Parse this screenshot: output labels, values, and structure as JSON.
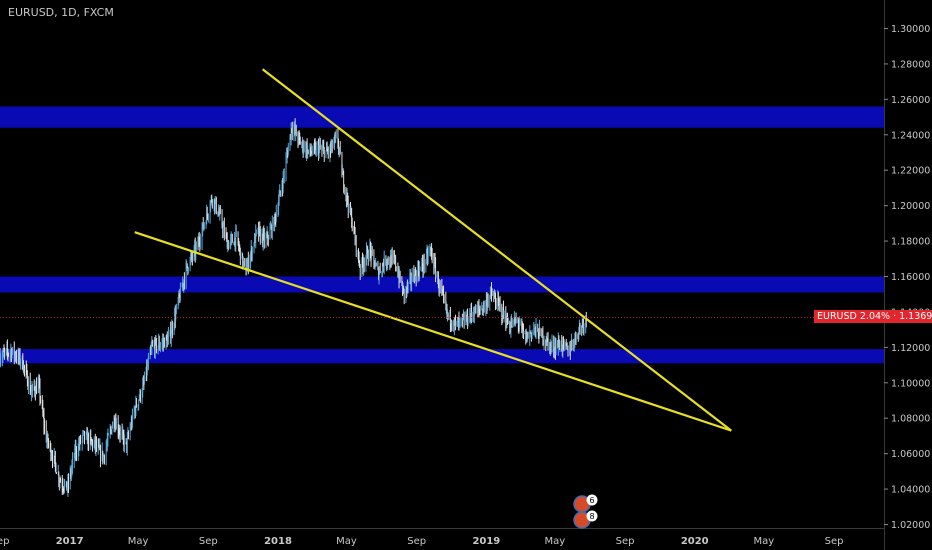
{
  "header": {
    "symbol_line": "EURUSD, 1D, FXCM"
  },
  "price_tag": {
    "text": "EURUSD 2.04% · 1.13691"
  },
  "badges": {
    "top": "6",
    "bottom": "8"
  },
  "colors": {
    "background": "#000000",
    "zone": "#0a0ab4",
    "trendline": "#e8e020",
    "up": "#5aa9d6",
    "down": "#e0e0e0",
    "last_price_line": "#e3262d"
  },
  "chart_data": {
    "type": "candlestick",
    "title": "EURUSD, 1D, FXCM",
    "xlabel": "",
    "ylabel": "",
    "ylim": [
      1.014,
      1.312
    ],
    "xlim": [
      "2016-09-01",
      "2020-10-20"
    ],
    "y_ticks": [
      "1.02000",
      "1.04000",
      "1.06000",
      "1.08000",
      "1.10000",
      "1.12000",
      "1.14000",
      "1.16000",
      "1.18000",
      "1.20000",
      "1.22000",
      "1.24000",
      "1.26000",
      "1.28000",
      "1.30000"
    ],
    "x_ticks": [
      {
        "label": "Sep",
        "date": "2016-09-01"
      },
      {
        "label": "2017",
        "date": "2017-01-01"
      },
      {
        "label": "May",
        "date": "2017-05-01"
      },
      {
        "label": "Sep",
        "date": "2017-09-01"
      },
      {
        "label": "2018",
        "date": "2018-01-01"
      },
      {
        "label": "May",
        "date": "2018-05-01"
      },
      {
        "label": "Sep",
        "date": "2018-09-01"
      },
      {
        "label": "2019",
        "date": "2019-01-01"
      },
      {
        "label": "May",
        "date": "2019-05-01"
      },
      {
        "label": "Sep",
        "date": "2019-09-01"
      },
      {
        "label": "2020",
        "date": "2020-01-01"
      },
      {
        "label": "May",
        "date": "2020-05-01"
      },
      {
        "label": "Sep",
        "date": "2020-09-01"
      }
    ],
    "last_price": 1.13691,
    "change_percent": "2.04%",
    "price_path": [
      [
        "2016-09-01",
        1.115
      ],
      [
        "2016-09-20",
        1.118
      ],
      [
        "2016-10-10",
        1.112
      ],
      [
        "2016-10-25",
        1.095
      ],
      [
        "2016-11-08",
        1.098
      ],
      [
        "2016-11-20",
        1.07
      ],
      [
        "2016-12-01",
        1.06
      ],
      [
        "2016-12-15",
        1.045
      ],
      [
        "2016-12-28",
        1.04
      ],
      [
        "2017-01-10",
        1.06
      ],
      [
        "2017-01-25",
        1.07
      ],
      [
        "2017-02-10",
        1.066
      ],
      [
        "2017-03-01",
        1.058
      ],
      [
        "2017-03-20",
        1.08
      ],
      [
        "2017-04-10",
        1.064
      ],
      [
        "2017-04-25",
        1.085
      ],
      [
        "2017-05-10",
        1.098
      ],
      [
        "2017-05-25",
        1.12
      ],
      [
        "2017-06-10",
        1.122
      ],
      [
        "2017-06-25",
        1.125
      ],
      [
        "2017-07-10",
        1.145
      ],
      [
        "2017-07-25",
        1.165
      ],
      [
        "2017-08-10",
        1.175
      ],
      [
        "2017-08-25",
        1.19
      ],
      [
        "2017-09-08",
        1.205
      ],
      [
        "2017-09-20",
        1.195
      ],
      [
        "2017-10-05",
        1.178
      ],
      [
        "2017-10-20",
        1.182
      ],
      [
        "2017-11-05",
        1.162
      ],
      [
        "2017-11-25",
        1.185
      ],
      [
        "2017-12-10",
        1.18
      ],
      [
        "2017-12-25",
        1.19
      ],
      [
        "2018-01-10",
        1.215
      ],
      [
        "2018-01-25",
        1.245
      ],
      [
        "2018-02-10",
        1.235
      ],
      [
        "2018-02-25",
        1.23
      ],
      [
        "2018-03-15",
        1.232
      ],
      [
        "2018-03-30",
        1.23
      ],
      [
        "2018-04-15",
        1.238
      ],
      [
        "2018-04-25",
        1.215
      ],
      [
        "2018-05-10",
        1.192
      ],
      [
        "2018-05-25",
        1.165
      ],
      [
        "2018-06-10",
        1.175
      ],
      [
        "2018-06-25",
        1.162
      ],
      [
        "2018-07-10",
        1.17
      ],
      [
        "2018-07-25",
        1.168
      ],
      [
        "2018-08-10",
        1.15
      ],
      [
        "2018-08-25",
        1.16
      ],
      [
        "2018-09-10",
        1.165
      ],
      [
        "2018-09-25",
        1.175
      ],
      [
        "2018-10-10",
        1.155
      ],
      [
        "2018-10-25",
        1.138
      ],
      [
        "2018-11-10",
        1.132
      ],
      [
        "2018-11-25",
        1.135
      ],
      [
        "2018-12-10",
        1.14
      ],
      [
        "2018-12-25",
        1.142
      ],
      [
        "2019-01-10",
        1.15
      ],
      [
        "2019-01-25",
        1.142
      ],
      [
        "2019-02-10",
        1.132
      ],
      [
        "2019-02-25",
        1.135
      ],
      [
        "2019-03-10",
        1.125
      ],
      [
        "2019-03-25",
        1.13
      ],
      [
        "2019-04-10",
        1.126
      ],
      [
        "2019-04-25",
        1.12
      ],
      [
        "2019-05-10",
        1.122
      ],
      [
        "2019-05-25",
        1.118
      ],
      [
        "2019-06-05",
        1.125
      ],
      [
        "2019-06-15",
        1.132
      ],
      [
        "2019-06-25",
        1.136
      ]
    ],
    "zones": [
      {
        "from": 1.244,
        "to": 1.256
      },
      {
        "from": 1.151,
        "to": 1.16
      },
      {
        "from": 1.111,
        "to": 1.119
      }
    ],
    "trendlines": [
      {
        "name": "upper",
        "from": [
          "2017-12-05",
          1.277
        ],
        "to": [
          "2020-03-05",
          1.073
        ]
      },
      {
        "name": "lower",
        "from": [
          "2017-04-25",
          1.185
        ],
        "to": [
          "2020-03-05",
          1.073
        ]
      }
    ]
  }
}
